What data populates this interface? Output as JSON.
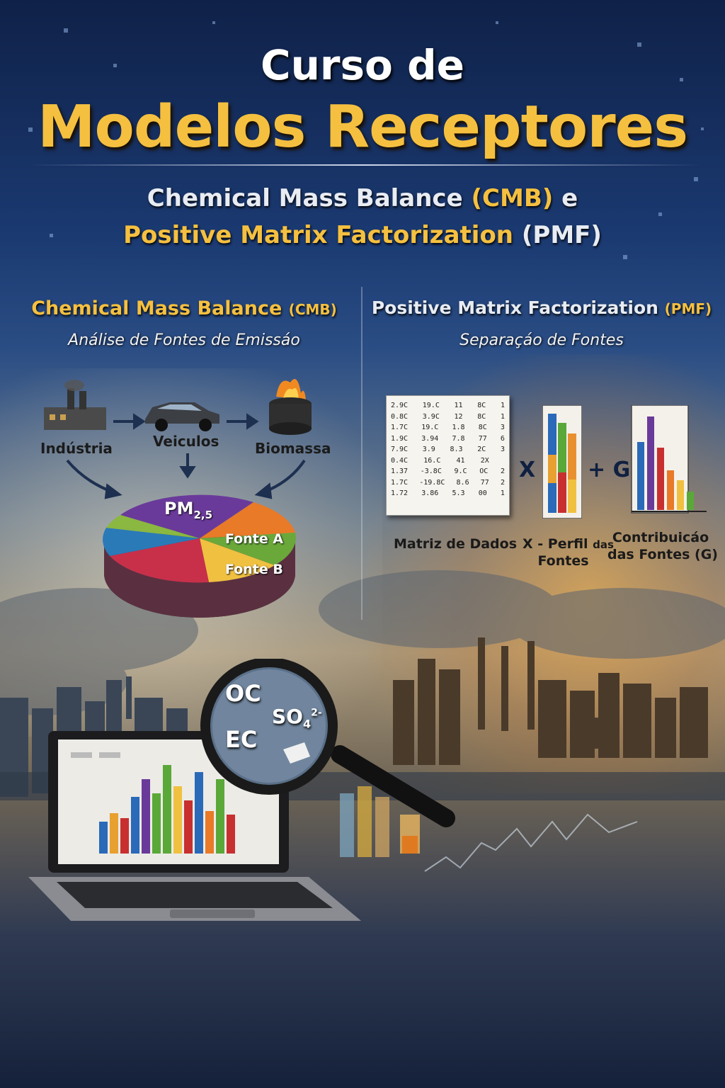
{
  "title": {
    "line1": "Curso de",
    "line2": "Modelos Receptores"
  },
  "subtitle": {
    "cmb_full": "Chemical Mass Balance",
    "cmb_abbr": "(CMB)",
    "conj": "e",
    "pmf_full": "Positive Matrix Factorization",
    "pmf_abbr": "(PMF)"
  },
  "cmb_column": {
    "heading": "Chemical Mass Balance",
    "heading_abbr": "(CMB)",
    "subheading": "Análise de Fontes de Emissáo",
    "sources": [
      "Indústria",
      "Veiculos",
      "Biomassa"
    ],
    "pie_center": "PM",
    "pie_center_sub": "2,5",
    "pie_labels": [
      "Fonte A",
      "Fonte B"
    ]
  },
  "pmf_column": {
    "heading": "Positive Matrix Factorization",
    "heading_abbr": "(PMF)",
    "subheading": "Separaçáo de Fontes",
    "matrix_rows": [
      [
        "2.9C",
        "19.C",
        "11",
        "8C",
        "1"
      ],
      [
        "0.8C",
        "3.9C",
        "12",
        "8C",
        "1"
      ],
      [
        "1.7C",
        "19.C",
        "1.8",
        "8C",
        "3"
      ],
      [
        "1.9C",
        "3.94",
        "7.8",
        "77",
        "6"
      ],
      [
        "7.9C",
        "3.9",
        "8.3",
        "2C",
        "3"
      ],
      [
        "0.4C",
        "16.C",
        "41",
        "2X",
        ""
      ],
      [
        "1.37",
        "-3.8C",
        "9.C",
        "OC",
        "2"
      ],
      [
        "1.7C",
        "-19.8C",
        "8.6",
        "77",
        "2"
      ],
      [
        "1.72",
        "3.86",
        "5.3",
        "00",
        "1"
      ]
    ],
    "operator_x": "X",
    "operator_plus_g": "+ G",
    "caption_matrix": "Matriz de Dados",
    "caption_profile_main": "X - Perfil",
    "caption_profile_small": "das",
    "caption_profile_line2": "Fontes",
    "caption_contrib_line1": "Contribuicáo",
    "caption_contrib_line2": "das Fontes (G)"
  },
  "magnifier": {
    "oc": "OC",
    "so4": "SO",
    "so4_sub": "4",
    "so4_sup": "2-",
    "ec": "EC"
  },
  "colors": {
    "gold": "#f5c040",
    "navy": "#1b3a72"
  }
}
